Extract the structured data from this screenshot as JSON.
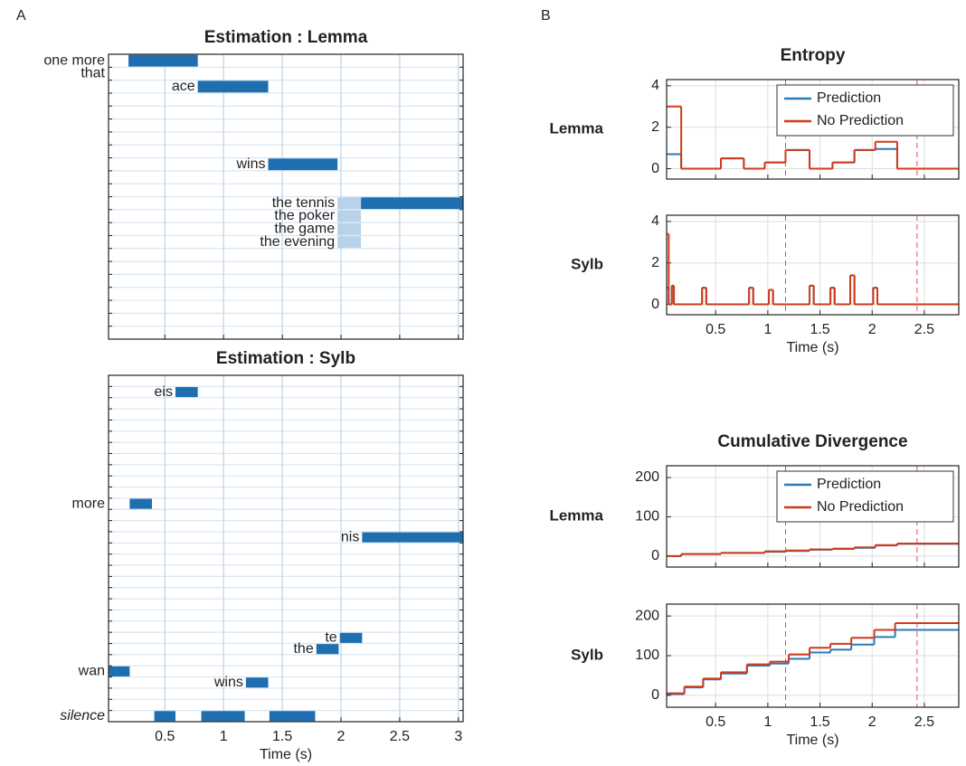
{
  "panel_labels": [
    "A",
    "B"
  ],
  "chart_data": [
    {
      "type": "timeline",
      "title": "Estimation : Lemma",
      "xlim": [
        0.02,
        3.04
      ],
      "xticks": [
        0.5,
        1,
        1.5,
        2,
        2.5,
        3
      ],
      "show_xtick_labels": false,
      "categories": [
        "one more",
        "that",
        "ace",
        null,
        null,
        null,
        null,
        null,
        "wins",
        null,
        null,
        "the tennis",
        "the poker",
        "the game",
        "the evening",
        null,
        null,
        null,
        null,
        null,
        null,
        null
      ],
      "segments": [
        {
          "color": "#1f6fb0",
          "start": [
            0.19,
            null,
            0.78,
            null,
            null,
            null,
            null,
            null,
            1.38,
            null,
            null,
            2.17,
            null,
            null,
            null,
            null,
            null,
            null,
            null,
            null,
            null,
            null
          ],
          "end": [
            0.78,
            null,
            1.38,
            null,
            null,
            null,
            null,
            null,
            1.97,
            null,
            null,
            3.04,
            null,
            null,
            null,
            null,
            null,
            null,
            null,
            null,
            null,
            null
          ]
        },
        {
          "color": "#b8d2ea",
          "start": [
            null,
            null,
            null,
            null,
            null,
            null,
            null,
            null,
            null,
            null,
            null,
            1.97,
            1.97,
            1.97,
            1.97,
            null,
            null,
            null,
            null,
            null,
            null,
            null
          ],
          "end": [
            null,
            null,
            null,
            null,
            null,
            null,
            null,
            null,
            null,
            null,
            null,
            2.17,
            2.17,
            2.17,
            2.17,
            null,
            null,
            null,
            null,
            null,
            null,
            null
          ]
        }
      ]
    },
    {
      "type": "timeline",
      "title": "Estimation : Sylb",
      "xlabel": "Time (s)",
      "xlim": [
        0.02,
        3.04
      ],
      "xticks": [
        0.5,
        1,
        1.5,
        2,
        2.5,
        3
      ],
      "show_xtick_labels": true,
      "categories": [
        null,
        "eis",
        null,
        null,
        null,
        null,
        null,
        null,
        null,
        null,
        null,
        "more",
        null,
        null,
        "nis",
        null,
        null,
        null,
        null,
        null,
        null,
        null,
        null,
        "te",
        "the",
        null,
        "wan",
        "wins",
        null,
        null,
        "silence"
      ],
      "segments": [
        {
          "color": "#1f6fb0",
          "start": [
            null,
            0.59,
            null,
            null,
            null,
            null,
            null,
            null,
            null,
            null,
            null,
            0.2,
            null,
            null,
            2.18,
            null,
            null,
            null,
            null,
            null,
            null,
            null,
            null,
            1.99,
            1.79,
            null,
            0.02,
            1.19,
            null,
            null,
            0.41
          ],
          "end": [
            null,
            0.78,
            null,
            null,
            null,
            null,
            null,
            null,
            null,
            null,
            null,
            0.39,
            null,
            null,
            3.04,
            null,
            null,
            null,
            null,
            null,
            null,
            null,
            null,
            2.18,
            1.98,
            null,
            0.2,
            1.38,
            null,
            null,
            0.59
          ]
        },
        {
          "color": "#1f6fb0",
          "start": [
            null,
            null,
            null,
            null,
            null,
            null,
            null,
            null,
            null,
            null,
            null,
            null,
            null,
            null,
            null,
            null,
            null,
            null,
            null,
            null,
            null,
            null,
            null,
            null,
            null,
            null,
            null,
            null,
            null,
            null,
            0.81
          ],
          "end": [
            null,
            null,
            null,
            null,
            null,
            null,
            null,
            null,
            null,
            null,
            null,
            null,
            null,
            null,
            null,
            null,
            null,
            null,
            null,
            null,
            null,
            null,
            null,
            null,
            null,
            null,
            null,
            null,
            null,
            null,
            1.18
          ]
        },
        {
          "color": "#1f6fb0",
          "start": [
            null,
            null,
            null,
            null,
            null,
            null,
            null,
            null,
            null,
            null,
            null,
            null,
            null,
            null,
            null,
            null,
            null,
            null,
            null,
            null,
            null,
            null,
            null,
            null,
            null,
            null,
            null,
            null,
            null,
            null,
            1.39
          ],
          "end": [
            null,
            null,
            null,
            null,
            null,
            null,
            null,
            null,
            null,
            null,
            null,
            null,
            null,
            null,
            null,
            null,
            null,
            null,
            null,
            null,
            null,
            null,
            null,
            null,
            null,
            null,
            null,
            null,
            null,
            null,
            1.78
          ]
        }
      ]
    },
    {
      "type": "step",
      "title": "Entropy",
      "row_label": "Lemma",
      "legend": "upper right",
      "grid": true,
      "show_xtick_labels": false,
      "xlim": [
        0.03,
        2.83
      ],
      "xticks": [
        0.5,
        1,
        1.5,
        2,
        2.5
      ],
      "ylim": [
        -0.5,
        4.3
      ],
      "yticks": [
        0,
        2,
        4
      ],
      "vlines": [
        1.17,
        2.43
      ],
      "vline_color": "#e05050",
      "x": [
        0.03,
        0.17,
        0.55,
        0.77,
        0.97,
        1.17,
        1.4,
        1.62,
        1.83,
        2.03,
        2.24
      ],
      "series": [
        {
          "name": "Prediction",
          "color": "#2a7ab8",
          "values": [
            0.7,
            0,
            0.5,
            0,
            0.3,
            0.9,
            0,
            0.3,
            0.9,
            0.95,
            0
          ]
        },
        {
          "name": "No Prediction",
          "color": "#d03a1a",
          "values": [
            3,
            0,
            0.5,
            0,
            0.3,
            0.9,
            0,
            0.3,
            0.9,
            1.3,
            0
          ]
        }
      ]
    },
    {
      "type": "step",
      "row_label": "Sylb",
      "xlabel": "Time (s)",
      "grid": true,
      "show_xtick_labels": true,
      "xlim": [
        0.03,
        2.83
      ],
      "xticks": [
        0.5,
        1,
        1.5,
        2,
        2.5
      ],
      "ylim": [
        -0.5,
        4.3
      ],
      "yticks": [
        0,
        2,
        4
      ],
      "vlines": [
        1.17,
        2.43
      ],
      "vline_color": "#e05050",
      "x": [
        0.03,
        0.05,
        0.08,
        0.1,
        0.37,
        0.41,
        0.82,
        0.86,
        1.01,
        1.05,
        1.4,
        1.44,
        1.6,
        1.64,
        1.79,
        1.83,
        2.01,
        2.05
      ],
      "series": [
        {
          "color": "#2a7ab8",
          "values": [
            0.8,
            0,
            0.9,
            0,
            0.8,
            0,
            0.8,
            0,
            0.7,
            0,
            0.9,
            0,
            0.8,
            0,
            1.4,
            0,
            0.8,
            0
          ]
        },
        {
          "color": "#d03a1a",
          "values": [
            3.4,
            0,
            0.9,
            0,
            0.8,
            0,
            0.8,
            0,
            0.7,
            0,
            0.9,
            0,
            0.8,
            0,
            1.4,
            0,
            0.8,
            0
          ]
        }
      ]
    },
    {
      "type": "step",
      "title": "Cumulative Divergence",
      "row_label": "Lemma",
      "legend": "upper right",
      "grid": true,
      "show_xtick_labels": false,
      "xlim": [
        0.03,
        2.83
      ],
      "xticks": [
        0.5,
        1,
        1.5,
        2,
        2.5
      ],
      "ylim": [
        -28,
        230
      ],
      "yticks": [
        0,
        100,
        200
      ],
      "vlines": [
        1.17,
        2.43
      ],
      "vline_color": "#e05050",
      "x": [
        0.03,
        0.17,
        0.55,
        0.77,
        0.97,
        1.17,
        1.4,
        1.62,
        1.83,
        2.03,
        2.24
      ],
      "series": [
        {
          "name": "Prediction",
          "color": "#2a7ab8",
          "values": [
            0,
            5,
            8,
            8,
            11,
            13,
            16,
            18,
            21,
            27,
            31
          ]
        },
        {
          "name": "No Prediction",
          "color": "#d03a1a",
          "values": [
            0,
            5,
            8,
            8,
            12,
            14,
            17,
            19,
            22,
            28,
            32
          ]
        }
      ]
    },
    {
      "type": "step",
      "row_label": "Sylb",
      "xlabel": "Time (s)",
      "grid": true,
      "show_xtick_labels": true,
      "xlim": [
        0.03,
        2.83
      ],
      "xticks": [
        0.5,
        1,
        1.5,
        2,
        2.5
      ],
      "ylim": [
        -30,
        230
      ],
      "yticks": [
        0,
        100,
        200
      ],
      "vlines": [
        1.17,
        2.43
      ],
      "vline_color": "#e05050",
      "x": [
        0.03,
        0.2,
        0.38,
        0.55,
        0.8,
        1.02,
        1.2,
        1.4,
        1.6,
        1.8,
        2.02,
        2.22
      ],
      "series": [
        {
          "color": "#2a7ab8",
          "values": [
            3,
            20,
            40,
            55,
            75,
            80,
            92,
            108,
            115,
            128,
            147,
            165
          ]
        },
        {
          "color": "#d03a1a",
          "values": [
            5,
            22,
            42,
            58,
            78,
            85,
            103,
            120,
            130,
            145,
            165,
            182
          ]
        }
      ]
    }
  ]
}
